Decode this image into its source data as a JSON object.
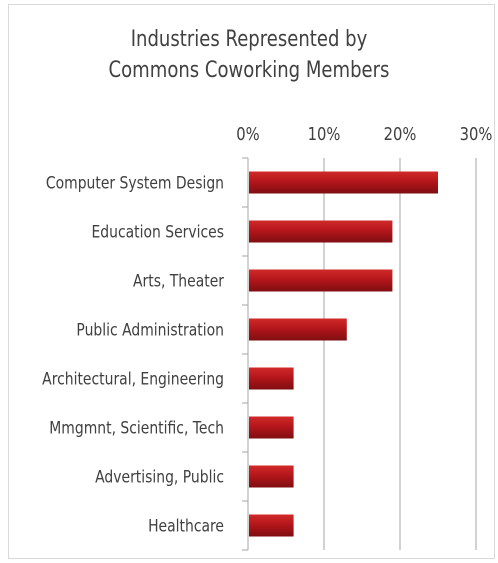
{
  "chart_data": {
    "type": "bar",
    "orientation": "horizontal",
    "title_lines": [
      "Industries Represented by",
      "Commons Coworking Members"
    ],
    "categories": [
      "Computer System Design",
      "Education Services",
      "Arts, Theater",
      "Public Administration",
      "Architectural, Engineering",
      "Mmgmnt, Scientific, Tech",
      "Advertising, Public",
      "Healthcare"
    ],
    "values": [
      25,
      19,
      19,
      13,
      6,
      6,
      6,
      6
    ],
    "xlim": [
      0,
      30
    ],
    "x_ticks": [
      0,
      10,
      20,
      30
    ],
    "x_tick_labels": [
      "0%",
      "10%",
      "20%",
      "30%"
    ],
    "x_axis_position": "top",
    "grid": "vertical",
    "legend": "none",
    "xlabel": "",
    "ylabel": "",
    "colors": {
      "bar": "#b4161b",
      "bar_shade": "#7f0e11",
      "grid": "#a6a6a6",
      "text": "#404040"
    }
  }
}
